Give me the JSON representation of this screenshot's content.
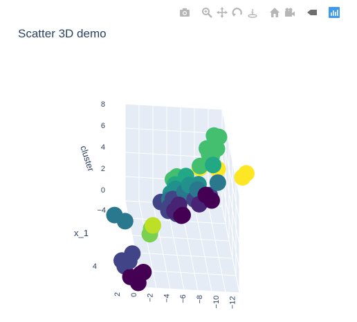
{
  "title": "Scatter 3D demo",
  "modebar": {
    "icons": [
      "camera-icon",
      "zoom-icon",
      "pan-icon",
      "orbit-icon",
      "turntable-icon",
      "home-icon",
      "camera-view-icon",
      "hover-toggle-icon",
      "plotly-logo-icon"
    ],
    "icon_color": "#b6b6b6",
    "dark_icon_color": "#6e6e6e",
    "logo_color": "#3f9bea"
  },
  "colors": {
    "scene_bg": "#e5ecf6",
    "grid": "#ffffff",
    "text": "#2a3f5f",
    "viridis": [
      "#440154",
      "#482475",
      "#414487",
      "#355f8d",
      "#2a788e",
      "#21918c",
      "#22a884",
      "#44bf70",
      "#7ad151",
      "#bddf26",
      "#fde725"
    ]
  },
  "chart_data": {
    "type": "scatter3d",
    "title": "Scatter 3D demo",
    "axes": {
      "x": {
        "label": "",
        "ticks": [
          "2",
          "0",
          "−2",
          "−4",
          "−6",
          "−8",
          "−10",
          "−12"
        ],
        "range": [
          -12,
          2
        ]
      },
      "y": {
        "label": "x_1",
        "ticks": [
          "−4",
          "4"
        ],
        "range": [
          -4,
          6
        ]
      },
      "z": {
        "label": "cluster",
        "ticks": [
          "0",
          "2",
          "4",
          "6",
          "8"
        ],
        "range": [
          0,
          8
        ]
      }
    },
    "colorscale": "viridis",
    "color_by": "cluster",
    "points": [
      {
        "x": 3.5,
        "y": 5.0,
        "z": 0.1,
        "c": 0
      },
      {
        "x": 2.0,
        "y": 5.0,
        "z": 0.4,
        "c": 0
      },
      {
        "x": 2.5,
        "y": 5.5,
        "z": 0.0,
        "c": 0
      },
      {
        "x": 1.5,
        "y": 4.5,
        "z": 0.2,
        "c": 0
      },
      {
        "x": -5.8,
        "y": -2.0,
        "z": 0.5,
        "c": 0
      },
      {
        "x": -10.3,
        "y": -3.2,
        "z": 1.0,
        "c": 0
      },
      {
        "x": -9.6,
        "y": -3.8,
        "z": 1.0,
        "c": 0
      },
      {
        "x": -5.5,
        "y": -1.5,
        "z": 0.8,
        "c": 0
      },
      {
        "x": -5.0,
        "y": -1.8,
        "z": 0.9,
        "c": 1
      },
      {
        "x": -4.5,
        "y": -1.6,
        "z": 1.1,
        "c": 1
      },
      {
        "x": -8.3,
        "y": -2.4,
        "z": 1.2,
        "c": 1
      },
      {
        "x": -5.3,
        "y": -2.2,
        "z": 1.2,
        "c": 1
      },
      {
        "x": 4.5,
        "y": 4.0,
        "z": 0.7,
        "c": 2
      },
      {
        "x": 3.5,
        "y": 4.3,
        "z": 0.9,
        "c": 2
      },
      {
        "x": 4.0,
        "y": 4.6,
        "z": 1.1,
        "c": 2
      },
      {
        "x": 3.0,
        "y": 4.1,
        "z": 1.4,
        "c": 2
      },
      {
        "x": 4.2,
        "y": 4.5,
        "z": 0.6,
        "c": 2
      },
      {
        "x": -3.5,
        "y": -1.0,
        "z": 1.5,
        "c": 2
      },
      {
        "x": -4.0,
        "y": -0.9,
        "z": 1.6,
        "c": 2
      },
      {
        "x": -4.6,
        "y": -0.7,
        "z": 1.5,
        "c": 2
      },
      {
        "x": -5.2,
        "y": -1.1,
        "z": 1.4,
        "c": 2
      },
      {
        "x": -3.8,
        "y": -1.3,
        "z": 1.7,
        "c": 2
      },
      {
        "x": -2.5,
        "y": -1.4,
        "z": 1.9,
        "c": 2
      },
      {
        "x": -5.0,
        "y": -0.8,
        "z": 2.3,
        "c": 2
      },
      {
        "x": -7.4,
        "y": -1.5,
        "z": 2.2,
        "c": 2
      },
      {
        "x": -9.8,
        "y": -2.4,
        "z": 2.0,
        "c": 2
      },
      {
        "x": -4.3,
        "y": -1.7,
        "z": 2.0,
        "c": 2
      },
      {
        "x": -9.5,
        "y": -1.0,
        "z": 2.8,
        "c": 2
      },
      {
        "x": 4.8,
        "y": 1.0,
        "z": 2.3,
        "c": 4
      },
      {
        "x": 3.4,
        "y": 1.5,
        "z": 2.2,
        "c": 4
      },
      {
        "x": -3.5,
        "y": -0.5,
        "z": 2.8,
        "c": 4
      },
      {
        "x": -5.8,
        "y": -0.9,
        "z": 3.2,
        "c": 4
      },
      {
        "x": -7.8,
        "y": -1.4,
        "z": 3.1,
        "c": 4
      },
      {
        "x": -11.0,
        "y": -2.5,
        "z": 3.0,
        "c": 4
      },
      {
        "x": -3.6,
        "y": -0.1,
        "z": 3.6,
        "c": 5
      },
      {
        "x": -4.3,
        "y": -0.2,
        "z": 3.9,
        "c": 5
      },
      {
        "x": -6.4,
        "y": -0.6,
        "z": 4.0,
        "c": 5
      },
      {
        "x": -7.8,
        "y": -0.9,
        "z": 3.9,
        "c": 5
      },
      {
        "x": -4.2,
        "y": 0.0,
        "z": 4.4,
        "c": 6
      },
      {
        "x": -5.9,
        "y": -0.5,
        "z": 4.8,
        "c": 6
      },
      {
        "x": -10.3,
        "y": -2.4,
        "z": 4.5,
        "c": 6
      },
      {
        "x": -3.8,
        "y": 0.4,
        "z": 5.1,
        "c": 7
      },
      {
        "x": -4.3,
        "y": 0.6,
        "z": 5.5,
        "c": 7
      },
      {
        "x": -8.1,
        "y": -1.2,
        "z": 5.2,
        "c": 7
      },
      {
        "x": -10.0,
        "y": -2.0,
        "z": 5.5,
        "c": 7
      },
      {
        "x": -9.5,
        "y": -1.5,
        "z": 6.0,
        "c": 7
      },
      {
        "x": -10.8,
        "y": -2.2,
        "z": 6.0,
        "c": 7
      },
      {
        "x": -9.2,
        "y": -1.6,
        "z": 6.4,
        "c": 7
      },
      {
        "x": -11.2,
        "y": -2.6,
        "z": 6.7,
        "c": 7
      },
      {
        "x": -10.4,
        "y": -2.3,
        "z": 7.0,
        "c": 7
      },
      {
        "x": 0.5,
        "y": 5.0,
        "z": 4.2,
        "c": 8
      },
      {
        "x": 0.8,
        "y": 5.4,
        "z": 4.0,
        "c": 8
      },
      {
        "x": 0.3,
        "y": 5.2,
        "z": 4.6,
        "c": 9
      },
      {
        "x": -7.0,
        "y": 3.0,
        "z": 8.0,
        "c": 10
      },
      {
        "x": -9.6,
        "y": 3.0,
        "z": 8.0,
        "c": 10
      },
      {
        "x": -13.0,
        "y": 3.8,
        "z": 8.0,
        "c": 10
      },
      {
        "x": -13.6,
        "y": 3.6,
        "z": 8.2,
        "c": 10
      }
    ]
  }
}
